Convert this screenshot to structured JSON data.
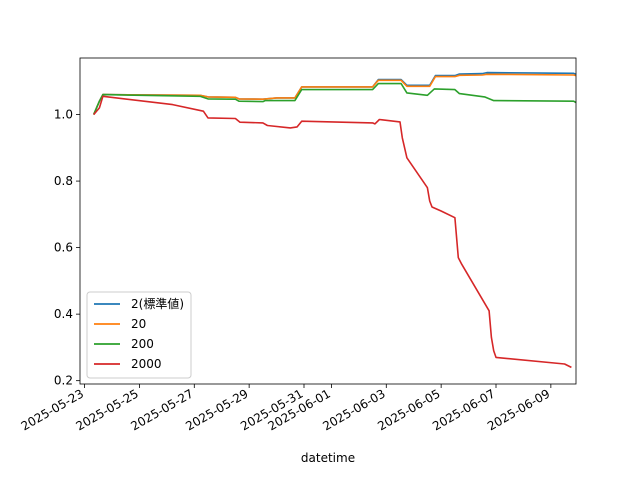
{
  "chart_data": {
    "type": "line",
    "title": "",
    "xlabel": "datetime",
    "ylabel": "",
    "x_ticks": [
      "2025-05-23",
      "2025-05-25",
      "2025-05-27",
      "2025-05-29",
      "2025-05-31",
      "2025-06-01",
      "2025-06-03",
      "2025-06-05",
      "2025-06-07",
      "2025-06-09"
    ],
    "y_ticks": [
      "0.2",
      "0.4",
      "0.6",
      "0.8",
      "1.0"
    ],
    "xlim": [
      "2025-05-22T20:00",
      "2025-06-09T22:00"
    ],
    "ylim": [
      0.19,
      1.17
    ],
    "grid": false,
    "legend_position": "lower-left",
    "series": [
      {
        "name": "2(標準値)",
        "color": "#1f77b4",
        "points": [
          [
            "2025-05-23T08:00",
            1.0
          ],
          [
            "2025-05-23T13:00",
            1.04
          ],
          [
            "2025-05-23T16:00",
            1.06
          ],
          [
            "2025-05-27T05:00",
            1.058
          ],
          [
            "2025-05-27T12:00",
            1.053
          ],
          [
            "2025-05-28T12:00",
            1.052
          ],
          [
            "2025-05-28T15:00",
            1.047
          ],
          [
            "2025-05-29T12:00",
            1.046
          ],
          [
            "2025-05-30T00:00",
            1.05
          ],
          [
            "2025-05-30T16:00",
            1.05
          ],
          [
            "2025-05-30T22:00",
            1.083
          ],
          [
            "2025-06-02T12:00",
            1.083
          ],
          [
            "2025-06-02T17:00",
            1.105
          ],
          [
            "2025-06-03T13:00",
            1.105
          ],
          [
            "2025-06-03T18:00",
            1.088
          ],
          [
            "2025-06-04T14:00",
            1.088
          ],
          [
            "2025-06-04T19:00",
            1.117
          ],
          [
            "2025-06-05T12:00",
            1.117
          ],
          [
            "2025-06-05T16:00",
            1.122
          ],
          [
            "2025-06-06T12:00",
            1.123
          ],
          [
            "2025-06-06T16:00",
            1.126
          ],
          [
            "2025-06-09T20:00",
            1.124
          ],
          [
            "2025-06-09T22:00",
            1.121
          ]
        ]
      },
      {
        "name": "20",
        "color": "#ff7f0e",
        "points": [
          [
            "2025-05-23T08:00",
            1.0
          ],
          [
            "2025-05-23T13:00",
            1.04
          ],
          [
            "2025-05-23T16:00",
            1.06
          ],
          [
            "2025-05-27T05:00",
            1.058
          ],
          [
            "2025-05-27T12:00",
            1.053
          ],
          [
            "2025-05-28T12:00",
            1.052
          ],
          [
            "2025-05-28T15:00",
            1.047
          ],
          [
            "2025-05-29T12:00",
            1.046
          ],
          [
            "2025-05-30T00:00",
            1.05
          ],
          [
            "2025-05-30T16:00",
            1.05
          ],
          [
            "2025-05-30T22:00",
            1.083
          ],
          [
            "2025-06-02T12:00",
            1.083
          ],
          [
            "2025-06-02T17:00",
            1.103
          ],
          [
            "2025-06-03T13:00",
            1.103
          ],
          [
            "2025-06-03T18:00",
            1.085
          ],
          [
            "2025-06-04T14:00",
            1.085
          ],
          [
            "2025-06-04T19:00",
            1.114
          ],
          [
            "2025-06-05T12:00",
            1.114
          ],
          [
            "2025-06-05T16:00",
            1.118
          ],
          [
            "2025-06-06T12:00",
            1.119
          ],
          [
            "2025-06-06T16:00",
            1.121
          ],
          [
            "2025-06-09T20:00",
            1.119
          ],
          [
            "2025-06-09T22:00",
            1.117
          ]
        ]
      },
      {
        "name": "200",
        "color": "#2ca02c",
        "points": [
          [
            "2025-05-23T08:00",
            1.0
          ],
          [
            "2025-05-23T13:00",
            1.04
          ],
          [
            "2025-05-23T16:00",
            1.06
          ],
          [
            "2025-05-27T05:00",
            1.055
          ],
          [
            "2025-05-27T12:00",
            1.047
          ],
          [
            "2025-05-28T12:00",
            1.046
          ],
          [
            "2025-05-28T15:00",
            1.04
          ],
          [
            "2025-05-29T12:00",
            1.039
          ],
          [
            "2025-05-29T14:00",
            1.042
          ],
          [
            "2025-05-30T16:00",
            1.042
          ],
          [
            "2025-05-30T22:00",
            1.075
          ],
          [
            "2025-06-02T12:00",
            1.075
          ],
          [
            "2025-06-02T17:00",
            1.093
          ],
          [
            "2025-06-03T13:00",
            1.093
          ],
          [
            "2025-06-03T18:00",
            1.065
          ],
          [
            "2025-06-04T12:00",
            1.058
          ],
          [
            "2025-06-04T18:00",
            1.077
          ],
          [
            "2025-06-05T12:00",
            1.075
          ],
          [
            "2025-06-05T16:00",
            1.063
          ],
          [
            "2025-06-06T14:00",
            1.053
          ],
          [
            "2025-06-06T22:00",
            1.042
          ],
          [
            "2025-06-09T20:00",
            1.04
          ],
          [
            "2025-06-09T22:00",
            1.036
          ]
        ]
      },
      {
        "name": "2000",
        "color": "#d62728",
        "points": [
          [
            "2025-05-23T08:00",
            1.0
          ],
          [
            "2025-05-23T13:00",
            1.02
          ],
          [
            "2025-05-23T16:00",
            1.055
          ],
          [
            "2025-05-26T05:00",
            1.03
          ],
          [
            "2025-05-27T08:00",
            1.01
          ],
          [
            "2025-05-27T12:00",
            0.99
          ],
          [
            "2025-05-28T12:00",
            0.988
          ],
          [
            "2025-05-28T16:00",
            0.977
          ],
          [
            "2025-05-29T12:00",
            0.975
          ],
          [
            "2025-05-29T16:00",
            0.967
          ],
          [
            "2025-05-30T12:00",
            0.96
          ],
          [
            "2025-05-30T18:00",
            0.963
          ],
          [
            "2025-05-30T22:00",
            0.98
          ],
          [
            "2025-06-02T12:00",
            0.975
          ],
          [
            "2025-06-02T14:00",
            0.972
          ],
          [
            "2025-06-02T18:00",
            0.985
          ],
          [
            "2025-06-03T12:00",
            0.978
          ],
          [
            "2025-06-03T14:00",
            0.93
          ],
          [
            "2025-06-03T18:00",
            0.87
          ],
          [
            "2025-06-04T12:00",
            0.78
          ],
          [
            "2025-06-04T14:00",
            0.74
          ],
          [
            "2025-06-04T16:00",
            0.722
          ],
          [
            "2025-06-05T00:00",
            0.71
          ],
          [
            "2025-06-05T12:00",
            0.69
          ],
          [
            "2025-06-05T15:00",
            0.57
          ],
          [
            "2025-06-05T18:00",
            0.55
          ],
          [
            "2025-06-06T18:00",
            0.41
          ],
          [
            "2025-06-06T20:00",
            0.33
          ],
          [
            "2025-06-06T22:00",
            0.29
          ],
          [
            "2025-06-07T00:00",
            0.27
          ],
          [
            "2025-06-09T12:00",
            0.25
          ],
          [
            "2025-06-09T18:00",
            0.24
          ]
        ]
      }
    ]
  }
}
